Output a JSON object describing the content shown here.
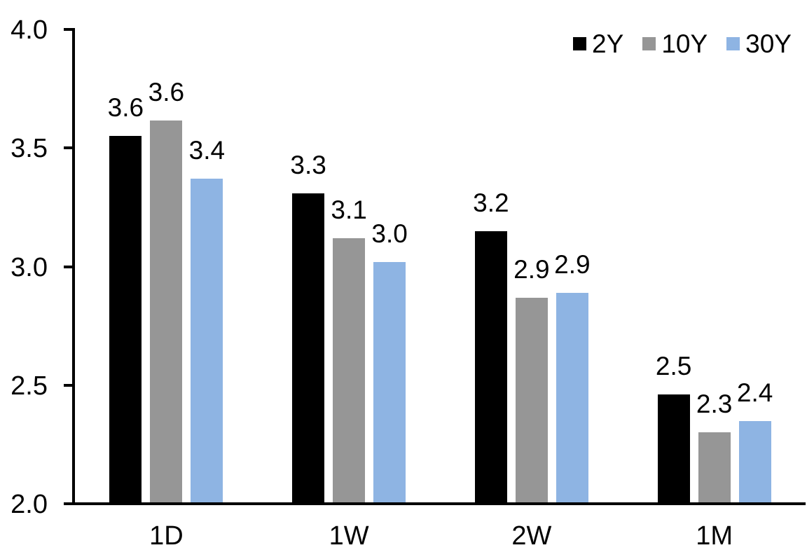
{
  "chart_data": {
    "type": "bar",
    "title": "",
    "categories": [
      "1D",
      "1W",
      "2W",
      "1M"
    ],
    "series": [
      {
        "name": "2Y",
        "color": "#000000",
        "values": [
          3.55,
          3.31,
          3.15,
          2.46
        ],
        "data_labels": [
          "3.6",
          "3.3",
          "3.2",
          "2.5"
        ]
      },
      {
        "name": "10Y",
        "color": "#969696",
        "values": [
          3.615,
          3.12,
          2.87,
          2.3
        ],
        "data_labels": [
          "3.6",
          "3.1",
          "2.9",
          "2.3"
        ]
      },
      {
        "name": "30Y",
        "color": "#8EB4E3",
        "values": [
          3.37,
          3.02,
          2.89,
          2.35
        ],
        "data_labels": [
          "3.4",
          "3.0",
          "2.9",
          "2.4"
        ]
      }
    ],
    "ylim": [
      2.0,
      4.0
    ],
    "yticks": [
      {
        "value": 2.0,
        "label": "2.0"
      },
      {
        "value": 2.5,
        "label": "2.5"
      },
      {
        "value": 3.0,
        "label": "3.0"
      },
      {
        "value": 3.5,
        "label": "3.5"
      },
      {
        "value": 4.0,
        "label": "4.0"
      }
    ],
    "grid": false,
    "legend_position": "top-right",
    "axis_color": "#000000",
    "text_color": "#000000",
    "background_color": "#FFFFFF"
  }
}
